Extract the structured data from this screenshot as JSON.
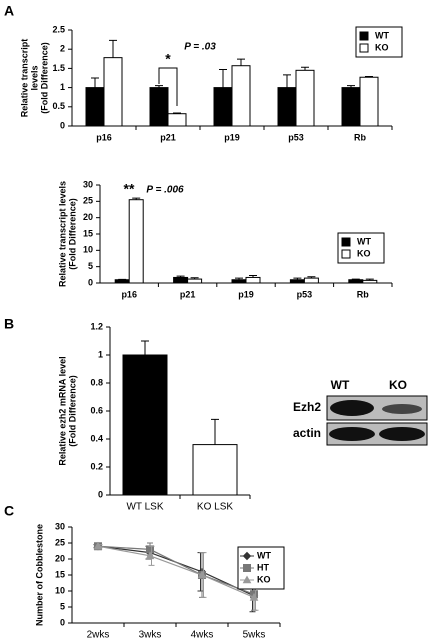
{
  "panel_labels": [
    "A",
    "B",
    "C"
  ],
  "blot": {
    "columns": [
      "WT",
      "KO"
    ],
    "rows": [
      "Ezh2",
      "actin"
    ]
  },
  "chart_data": [
    {
      "type": "bar",
      "y_label": [
        "Relative transcript",
        "levels",
        "(Fold Difference)"
      ],
      "categories": [
        "p16",
        "p21",
        "p19",
        "p53",
        "Rb"
      ],
      "series": [
        {
          "name": "WT",
          "color": "#000000",
          "values": [
            1,
            1,
            1,
            1,
            1
          ],
          "errors": [
            0.25,
            0.05,
            0.47,
            0.33,
            0.05
          ]
        },
        {
          "name": "KO",
          "color": "#ffffff",
          "values": [
            1.78,
            0.32,
            1.57,
            1.45,
            1.27
          ],
          "errors": [
            0.45,
            0.02,
            0.17,
            0.08,
            0.02
          ]
        }
      ],
      "ylim": [
        0,
        2.5
      ],
      "yticks": [
        0,
        0.5,
        1,
        1.5,
        2,
        2.5
      ],
      "legend": "upper right",
      "annotations": [
        "*",
        "P = .03"
      ]
    },
    {
      "type": "bar",
      "y_label": [
        "Relative transcript levels",
        "(Fold Difference)"
      ],
      "categories": [
        "p16",
        "p21",
        "p19",
        "p53",
        "Rb"
      ],
      "series": [
        {
          "name": "WT",
          "color": "#000000",
          "values": [
            1,
            1.7,
            1,
            1,
            1
          ],
          "errors": [
            0.1,
            0.4,
            0.5,
            0.5,
            0.2
          ]
        },
        {
          "name": "KO",
          "color": "#ffffff",
          "values": [
            25.5,
            1.2,
            1.7,
            1.5,
            0.8
          ],
          "errors": [
            0.5,
            0.4,
            0.6,
            0.4,
            0.4
          ]
        }
      ],
      "ylim": [
        0,
        30
      ],
      "yticks": [
        0,
        5,
        10,
        15,
        20,
        25,
        30
      ],
      "legend": "right",
      "annotations": [
        "**",
        "P = .006"
      ]
    },
    {
      "type": "bar",
      "y_label": [
        "Relative ezh2 mRNA level",
        "(Fold Difference)"
      ],
      "categories": [
        "WT LSK",
        "KO LSK"
      ],
      "series": [
        {
          "colors": [
            "#000000",
            "#ffffff"
          ],
          "values": [
            1,
            0.36
          ],
          "errors": [
            0.1,
            0.18
          ]
        }
      ],
      "ylim": [
        0,
        1.2
      ],
      "yticks": [
        0,
        0.2,
        0.4,
        0.6,
        0.8,
        1,
        1.2
      ]
    },
    {
      "type": "line",
      "y_label": [
        "Number of Cobblestone"
      ],
      "categories": [
        "2wks",
        "3wks",
        "4wks",
        "5wks"
      ],
      "series": [
        {
          "name": "WT",
          "color": "#333333",
          "marker": "diamond",
          "values": [
            24,
            22,
            16,
            8.5
          ],
          "errors": [
            0.5,
            2,
            6,
            5
          ]
        },
        {
          "name": "HT",
          "color": "#777777",
          "marker": "square",
          "values": [
            24,
            23,
            15,
            9
          ],
          "errors": [
            0.5,
            2,
            7,
            5
          ]
        },
        {
          "name": "KO",
          "color": "#999999",
          "marker": "triangle",
          "values": [
            24,
            21,
            15,
            8
          ],
          "errors": [
            0.5,
            3,
            7,
            4
          ]
        }
      ],
      "ylim": [
        0,
        30
      ],
      "yticks": [
        0,
        5,
        10,
        15,
        20,
        25,
        30
      ],
      "legend": "upper right"
    }
  ]
}
